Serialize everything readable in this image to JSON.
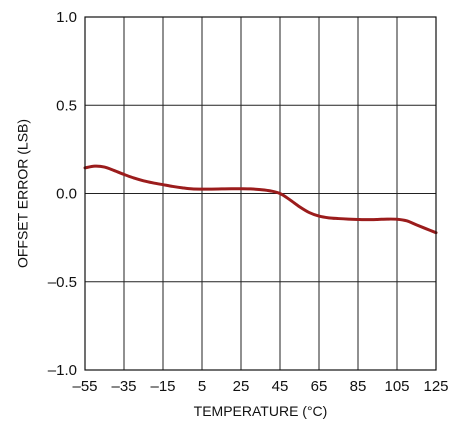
{
  "chart_data": {
    "type": "line",
    "title": "",
    "xlabel": "TEMPERATURE (°C)",
    "ylabel": "OFFSET ERROR (LSB)",
    "xlim": [
      -55,
      125
    ],
    "ylim": [
      -1.0,
      1.0
    ],
    "x_ticks": [
      "–55",
      "–35",
      "–15",
      "5",
      "25",
      "45",
      "65",
      "85",
      "105",
      "125"
    ],
    "y_ticks": [
      "1.0",
      "0.5",
      "0.0",
      "–0.5",
      "–1.0"
    ],
    "x_tick_values": [
      -55,
      -35,
      -15,
      5,
      25,
      45,
      65,
      85,
      105,
      125
    ],
    "y_tick_values": [
      1.0,
      0.5,
      0.0,
      -0.5,
      -1.0
    ],
    "grid": true,
    "series": [
      {
        "color": "#9b1c1c",
        "x": [
          -55,
          -50,
          -45,
          -40,
          -35,
          -30,
          -25,
          -20,
          -15,
          -10,
          -5,
          0,
          5,
          10,
          15,
          20,
          25,
          30,
          35,
          40,
          45,
          50,
          55,
          60,
          65,
          70,
          75,
          80,
          85,
          90,
          95,
          100,
          105,
          110,
          115,
          120,
          125
        ],
        "y": [
          0.145,
          0.155,
          0.15,
          0.13,
          0.108,
          0.088,
          0.072,
          0.06,
          0.05,
          0.04,
          0.032,
          0.026,
          0.025,
          0.025,
          0.026,
          0.027,
          0.027,
          0.026,
          0.022,
          0.015,
          0.0,
          -0.035,
          -0.075,
          -0.108,
          -0.128,
          -0.138,
          -0.142,
          -0.145,
          -0.147,
          -0.148,
          -0.147,
          -0.145,
          -0.146,
          -0.155,
          -0.178,
          -0.2,
          -0.222
        ]
      }
    ]
  }
}
